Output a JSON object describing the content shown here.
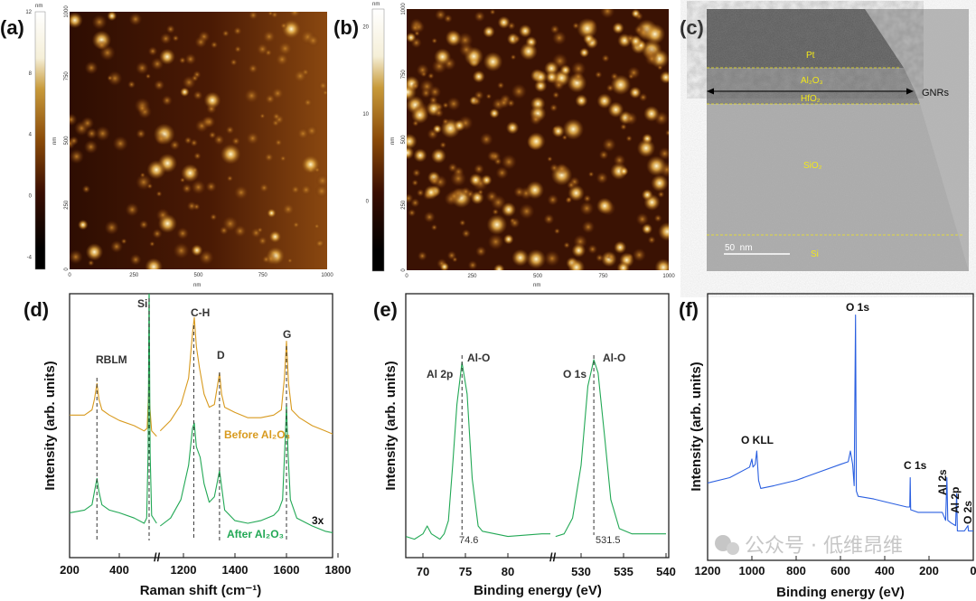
{
  "panels": {
    "a": {
      "label": "(a)",
      "unit": "nm",
      "colorbar_ticks": [
        "12",
        "8",
        "4",
        "0",
        "-4"
      ],
      "axis_ticks": [
        "0",
        "250",
        "500",
        "750",
        "1000"
      ],
      "colorbar_range": [
        -4.8,
        12
      ]
    },
    "b": {
      "label": "(b)",
      "unit": "nm",
      "colorbar_ticks": [
        "20",
        "10",
        "0"
      ],
      "axis_ticks": [
        "0",
        "250",
        "500",
        "750",
        "1000"
      ],
      "colorbar_range": [
        -8,
        22
      ]
    },
    "c": {
      "label": "(c)",
      "layers": {
        "pt": "Pt",
        "al2o3": "Al₂O₃",
        "hfo2": "HfO₂",
        "sio2": "SiO₂",
        "si": "Si"
      },
      "gnrs": "GNRs",
      "scale_bar": "50  nm",
      "layer_label_color": "#f2e81a"
    },
    "d": {
      "label": "(d)"
    },
    "e": {
      "label": "(e)"
    },
    "f": {
      "label": "(f)"
    }
  },
  "watermark": "公众号 · 低维昂维",
  "chart_data": [
    {
      "panel": "d",
      "type": "line",
      "xlabel": "Raman shift (cm⁻¹)",
      "ylabel": "Intensity (arb. units)",
      "x_ticks": [
        200,
        400,
        1200,
        1400,
        1600,
        1800
      ],
      "axis_break": [
        560,
        1110
      ],
      "grid": false,
      "peak_labels": [
        {
          "text": "RBLM",
          "x": 310
        },
        {
          "text": "Si",
          "x": 520
        },
        {
          "text": "C-H",
          "x": 1240
        },
        {
          "text": "D",
          "x": 1340
        },
        {
          "text": "G",
          "x": 1600
        }
      ],
      "scale_note": "3x",
      "series": [
        {
          "name": "Before Al₂O₃",
          "color": "#d89a1e",
          "segments": [
            [
              [
                200,
                54
              ],
              [
                260,
                54
              ],
              [
                290,
                56
              ],
              [
                300,
                60
              ],
              [
                310,
                66
              ],
              [
                318,
                60
              ],
              [
                330,
                56
              ],
              [
                360,
                54
              ],
              [
                400,
                52
              ],
              [
                460,
                50
              ],
              [
                500,
                48
              ],
              [
                512,
                49
              ],
              [
                518,
                62
              ],
              [
                520,
                70
              ],
              [
                522,
                58
              ],
              [
                530,
                48
              ],
              [
                550,
                46
              ]
            ],
            [
              [
                1110,
                48
              ],
              [
                1150,
                52
              ],
              [
                1190,
                58
              ],
              [
                1220,
                68
              ],
              [
                1235,
                85
              ],
              [
                1242,
                91
              ],
              [
                1250,
                80
              ],
              [
                1262,
                72
              ],
              [
                1280,
                62
              ],
              [
                1300,
                57
              ],
              [
                1320,
                58
              ],
              [
                1330,
                64
              ],
              [
                1340,
                70
              ],
              [
                1348,
                62
              ],
              [
                1360,
                57
              ],
              [
                1400,
                55
              ],
              [
                1450,
                53
              ],
              [
                1500,
                53
              ],
              [
                1550,
                54
              ],
              [
                1580,
                56
              ],
              [
                1592,
                68
              ],
              [
                1600,
                82
              ],
              [
                1608,
                66
              ],
              [
                1620,
                56
              ],
              [
                1650,
                53
              ],
              [
                1700,
                50
              ],
              [
                1750,
                48
              ],
              [
                1800,
                46
              ]
            ]
          ]
        },
        {
          "name": "After Al₂O₃",
          "color": "#22a855",
          "segments": [
            [
              [
                200,
                17
              ],
              [
                260,
                18
              ],
              [
                290,
                20
              ],
              [
                300,
                25
              ],
              [
                310,
                30
              ],
              [
                318,
                25
              ],
              [
                330,
                20
              ],
              [
                360,
                18
              ],
              [
                400,
                17
              ],
              [
                460,
                15
              ],
              [
                500,
                13
              ],
              [
                510,
                15
              ],
              [
                516,
                40
              ],
              [
                520,
                105
              ],
              [
                524,
                40
              ],
              [
                530,
                16
              ],
              [
                550,
                13
              ]
            ],
            [
              [
                1110,
                12
              ],
              [
                1150,
                15
              ],
              [
                1190,
                22
              ],
              [
                1220,
                35
              ],
              [
                1235,
                49
              ],
              [
                1242,
                51
              ],
              [
                1250,
                42
              ],
              [
                1265,
                38
              ],
              [
                1280,
                28
              ],
              [
                1300,
                21
              ],
              [
                1320,
                23
              ],
              [
                1330,
                28
              ],
              [
                1340,
                33
              ],
              [
                1348,
                27
              ],
              [
                1360,
                18
              ],
              [
                1400,
                14
              ],
              [
                1450,
                13
              ],
              [
                1500,
                14
              ],
              [
                1550,
                16
              ],
              [
                1570,
                18
              ],
              [
                1585,
                22
              ],
              [
                1595,
                45
              ],
              [
                1600,
                58
              ],
              [
                1606,
                40
              ],
              [
                1615,
                22
              ],
              [
                1640,
                15
              ],
              [
                1700,
                12
              ],
              [
                1750,
                10
              ],
              [
                1800,
                9
              ]
            ]
          ]
        }
      ]
    },
    {
      "panel": "e",
      "type": "line",
      "xlabel": "Binding energy (eV)",
      "ylabel": "Intensity (arb. units)",
      "x_ticks": [
        70,
        75,
        80,
        530,
        535,
        540
      ],
      "axis_break": [
        85,
        527
      ],
      "grid": false,
      "annotations": [
        {
          "text": "Al 2p"
        },
        {
          "text": "Al-O",
          "x": 74.6,
          "value_label": "74.6"
        },
        {
          "text": "O 1s"
        },
        {
          "text": "Al-O",
          "x": 531.5,
          "value_label": "531.5"
        }
      ],
      "series": [
        {
          "color": "#22a855",
          "segments": [
            [
              [
                68,
                8
              ],
              [
                69,
                7
              ],
              [
                70,
                9
              ],
              [
                70.5,
                12
              ],
              [
                71,
                9
              ],
              [
                72,
                7
              ],
              [
                72.5,
                9
              ],
              [
                73,
                14
              ],
              [
                73.5,
                35
              ],
              [
                74,
                58
              ],
              [
                74.6,
                74
              ],
              [
                75.2,
                62
              ],
              [
                75.8,
                30
              ],
              [
                76.5,
                12
              ],
              [
                77,
                10
              ],
              [
                80,
                8
              ],
              [
                84,
                9
              ],
              [
                85,
                9
              ]
            ],
            [
              [
                527,
                8
              ],
              [
                528,
                9
              ],
              [
                529,
                15
              ],
              [
                530,
                35
              ],
              [
                530.8,
                65
              ],
              [
                531.5,
                75
              ],
              [
                532,
                70
              ],
              [
                532.8,
                45
              ],
              [
                533.5,
                22
              ],
              [
                534.5,
                11
              ],
              [
                536,
                9
              ],
              [
                540,
                9
              ]
            ]
          ]
        }
      ]
    },
    {
      "panel": "f",
      "type": "line",
      "xlabel": "Binding energy (eV)",
      "ylabel": "Intensity (arb. units)",
      "x_ticks": [
        1200,
        1000,
        800,
        600,
        400,
        200,
        0
      ],
      "xlim": [
        1200,
        0
      ],
      "grid": false,
      "peak_labels": [
        {
          "text": "O KLL"
        },
        {
          "text": "O 1s"
        },
        {
          "text": "C 1s"
        },
        {
          "text": "Al 2s"
        },
        {
          "text": "Al 2p"
        },
        {
          "text": "O 2s"
        }
      ],
      "series": [
        {
          "color": "#2a5fe0",
          "segments": [
            [
              [
                1200,
                29
              ],
              [
                1100,
                31
              ],
              [
                1010,
                35
              ],
              [
                1000,
                38
              ],
              [
                995,
                35
              ],
              [
                985,
                36
              ],
              [
                978,
                41
              ],
              [
                970,
                30
              ],
              [
                960,
                27
              ],
              [
                900,
                28
              ],
              [
                800,
                30
              ],
              [
                700,
                33
              ],
              [
                600,
                36
              ],
              [
                565,
                37
              ],
              [
                555,
                41
              ],
              [
                545,
                36
              ],
              [
                538,
                28
              ],
              [
                532,
                92
              ],
              [
                528,
                26
              ],
              [
                520,
                24
              ],
              [
                450,
                23
              ],
              [
                400,
                22
              ],
              [
                300,
                20
              ],
              [
                287,
                20
              ],
              [
                285,
                31
              ],
              [
                283,
                19
              ],
              [
                250,
                18
              ],
              [
                200,
                18
              ],
              [
                140,
                18
              ],
              [
                125,
                15
              ],
              [
                119,
                31
              ],
              [
                115,
                15
              ],
              [
                100,
                14
              ],
              [
                80,
                13
              ],
              [
                75,
                25
              ],
              [
                72,
                11
              ],
              [
                40,
                11
              ],
              [
                24,
                13
              ],
              [
                22,
                11
              ],
              [
                0,
                11
              ]
            ]
          ]
        }
      ]
    }
  ]
}
